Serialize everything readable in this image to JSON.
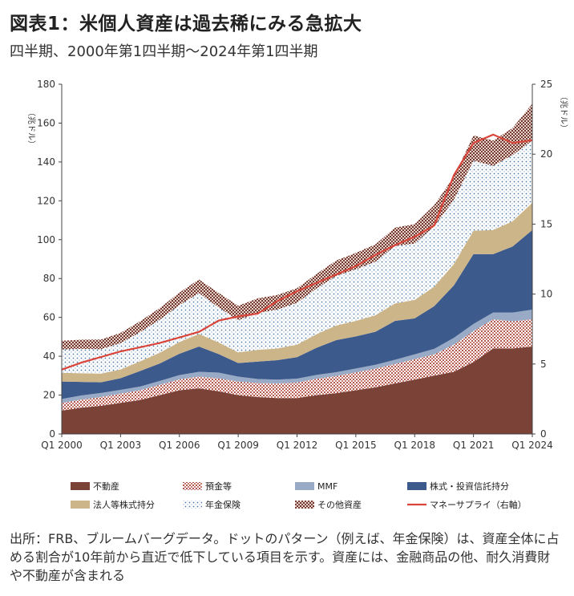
{
  "title": "図表1：米個人資産は過去稀にみる急拡大",
  "subtitle": "四半期、2000年第1四半期〜2024年第1四半期",
  "note": "出所：FRB、ブルームバーグデータ。ドットのパターン（例えば、年金保険）は、資産全体に占める割合が10年前から直近で低下している項目を示す。資産には、金融商品の他、耐久消費財や不動産が含まれる",
  "chart_data": {
    "type": "area",
    "stacked": true,
    "x": [
      2000,
      2001,
      2002,
      2003,
      2004,
      2005,
      2006,
      2007,
      2008,
      2009,
      2010,
      2011,
      2012,
      2013,
      2014,
      2015,
      2016,
      2017,
      2018,
      2019,
      2020,
      2021,
      2022,
      2023,
      2024
    ],
    "x_tick_labels": [
      "Q1 2000",
      "Q1 2003",
      "Q1 2006",
      "Q1 2009",
      "Q1 2012",
      "Q1 2015",
      "Q1 2018",
      "Q1 2021",
      "Q1 2024"
    ],
    "x_tick_values": [
      2000,
      2003,
      2006,
      2009,
      2012,
      2015,
      2018,
      2021,
      2024
    ],
    "ylim": [
      0,
      180
    ],
    "yticks": [
      0,
      20,
      40,
      60,
      80,
      100,
      120,
      140,
      160,
      180
    ],
    "ylabel": "（兆ドル）",
    "y2lim": [
      0,
      25
    ],
    "y2ticks": [
      0,
      5,
      10,
      15,
      20,
      25
    ],
    "y2label": "（兆ドル）",
    "series": [
      {
        "name": "不動産",
        "color": "#7b4238",
        "pattern": "solid",
        "values": [
          12,
          13.5,
          14.5,
          16,
          17.5,
          20,
          22.5,
          23.5,
          22,
          20,
          19,
          18.5,
          18.5,
          20,
          21,
          22.5,
          24,
          26,
          28,
          30,
          32,
          37,
          44,
          44,
          45
        ]
      },
      {
        "name": "預金等",
        "color": "#a04a40",
        "pattern": "crosshatch",
        "values": [
          4,
          4.2,
          4.5,
          4.8,
          5,
          5.3,
          5.6,
          6,
          6.6,
          7,
          7.2,
          7.5,
          8,
          8.4,
          8.8,
          9.2,
          9.6,
          10,
          10.5,
          11,
          14,
          16,
          15,
          14,
          14
        ]
      },
      {
        "name": "MMF",
        "color": "#98aac6",
        "pattern": "solid",
        "values": [
          2,
          2.1,
          2.1,
          1.9,
          1.9,
          2,
          2.2,
          2.5,
          3,
          2.5,
          2.1,
          2,
          2,
          2,
          2,
          2,
          2,
          2.2,
          2.5,
          2.8,
          3.5,
          3.6,
          3.5,
          4.5,
          5
        ]
      },
      {
        "name": "株式・投資信託持分",
        "color": "#3d5a8c",
        "pattern": "solid",
        "values": [
          9,
          7,
          5.5,
          6,
          8,
          9,
          11,
          13,
          9.5,
          7,
          9,
          10,
          11,
          14,
          16.5,
          16.5,
          17,
          20,
          18.5,
          22,
          27,
          36,
          30,
          34,
          41
        ]
      },
      {
        "name": "法人等株式持分",
        "color": "#cdb58a",
        "pattern": "solid",
        "values": [
          4.5,
          4.5,
          4.5,
          4.5,
          5,
          5.5,
          6,
          6.5,
          6,
          5.5,
          6,
          6,
          6.5,
          7,
          7.5,
          8,
          8.5,
          9,
          9.5,
          10,
          11,
          12,
          12.5,
          13,
          14
        ]
      },
      {
        "name": "年金保険",
        "color": "#4a79a8",
        "pattern": "dots",
        "values": [
          12,
          12.5,
          12.5,
          13.5,
          15,
          17,
          19,
          21,
          18,
          16.5,
          19,
          20,
          21.5,
          23.5,
          25.5,
          26.5,
          27.5,
          29.5,
          29,
          31,
          33,
          36,
          33,
          34,
          32
        ]
      },
      {
        "name": "その他資産",
        "color": "#7b4238",
        "pattern": "crosshatch",
        "values": [
          4.5,
          4.7,
          5,
          5.3,
          5.6,
          6,
          6.5,
          7,
          7.5,
          7.5,
          7.5,
          7.5,
          7.5,
          7.5,
          8,
          8.5,
          9,
          9.5,
          10,
          11,
          12,
          13,
          13,
          14,
          19
        ]
      }
    ],
    "line_series": {
      "name": "マネーサプライ（右軸）",
      "color": "#d9453a",
      "axis": "right",
      "values": [
        4.6,
        5.1,
        5.5,
        5.9,
        6.2,
        6.5,
        6.9,
        7.3,
        8.1,
        8.4,
        8.6,
        9.5,
        10.2,
        10.8,
        11.4,
        12.0,
        12.8,
        13.5,
        14.1,
        14.9,
        18.5,
        20.8,
        21.4,
        20.8,
        21.0
      ]
    },
    "legend": [
      "不動産",
      "預金等",
      "MMF",
      "株式・投資信託持分",
      "法人等株式持分",
      "年金保険",
      "その他資産",
      "マネーサプライ（右軸）"
    ],
    "legend_position": "bottom",
    "grid": false
  }
}
